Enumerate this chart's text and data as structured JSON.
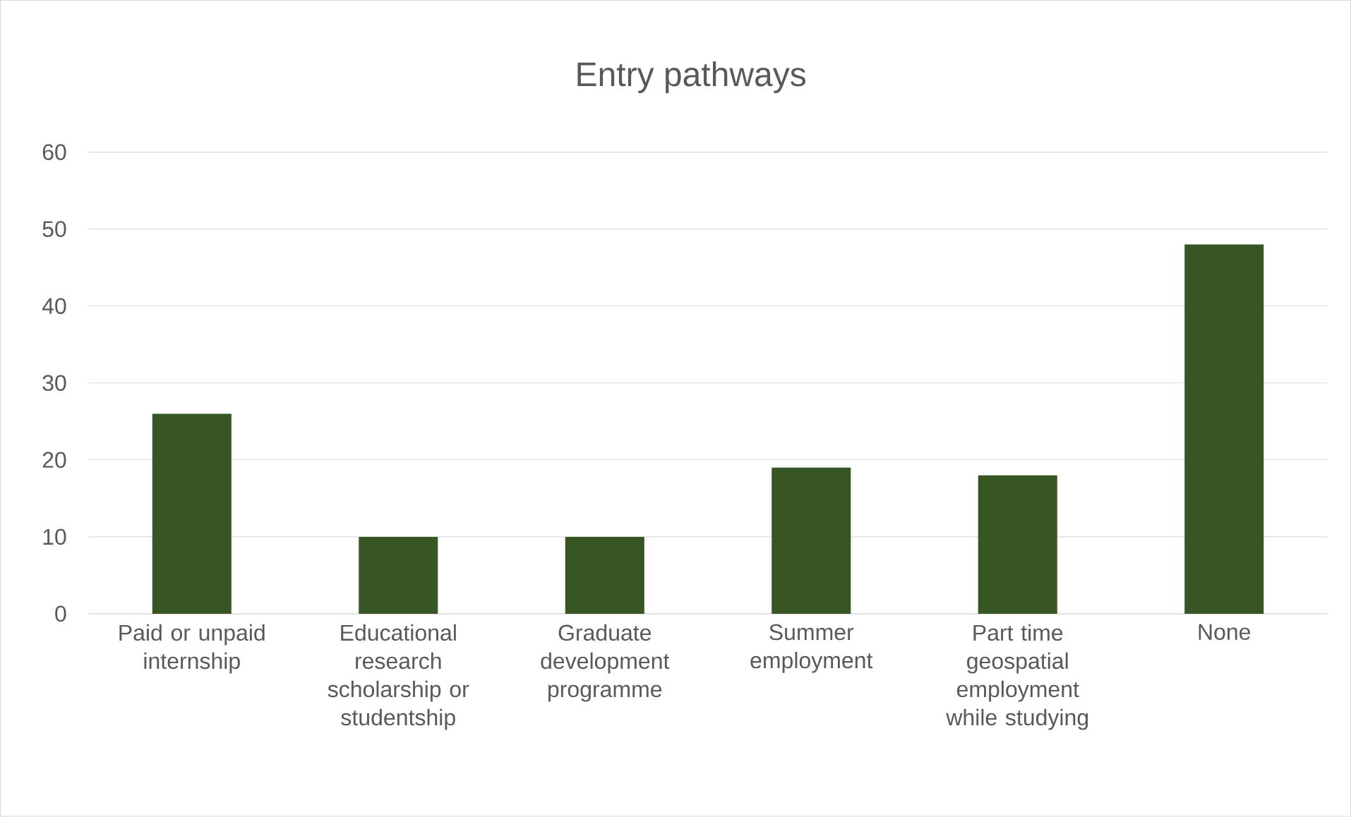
{
  "chart_data": {
    "type": "bar",
    "title": "Entry pathways",
    "categories": [
      "Paid or unpaid internship",
      "Educational research scholarship or studentship",
      "Graduate development programme",
      "Summer employment",
      "Part time geospatial employment while studying",
      "None"
    ],
    "values": [
      26,
      10,
      10,
      19,
      18,
      48
    ],
    "color": "#375623",
    "ylim": [
      0,
      60
    ],
    "yticks": [
      0,
      10,
      20,
      30,
      40,
      50,
      60
    ],
    "grid": "y"
  }
}
